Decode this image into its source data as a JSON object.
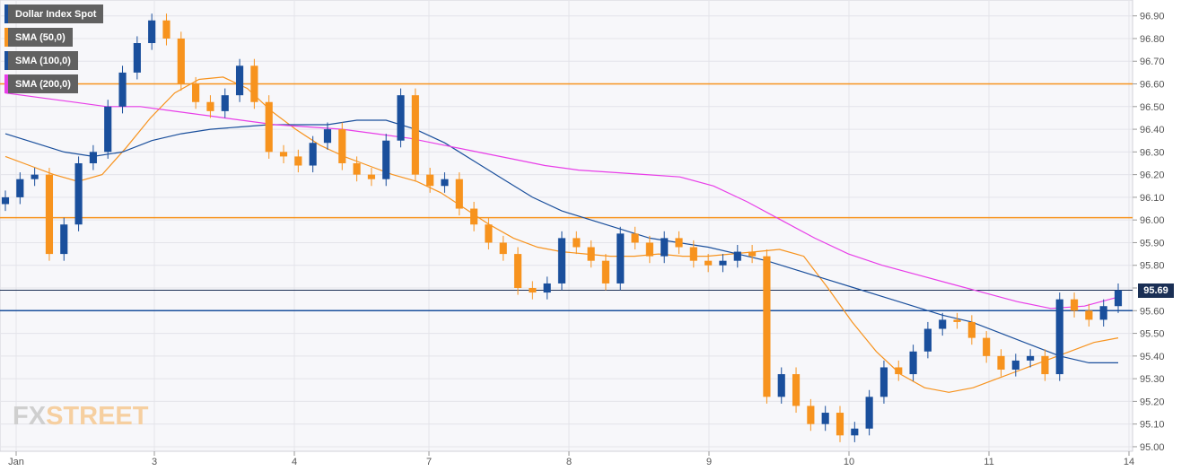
{
  "legend": [
    {
      "label": "Dollar Index Spot",
      "color": "#1a4f9c"
    },
    {
      "label": "SMA (50,0)",
      "color": "#f7931e"
    },
    {
      "label": "SMA (100,0)",
      "color": "#1a4f9c"
    },
    {
      "label": "SMA (200,0)",
      "color": "#e83ee8"
    }
  ],
  "logo": {
    "fx": "FX",
    "street": "STREET"
  },
  "current_price_label": "95.69",
  "chart_data": {
    "type": "line",
    "title": "",
    "xlabel": "",
    "ylabel": "",
    "ylim": [
      94.98,
      96.97
    ],
    "y_ticks": [
      "96.90",
      "96.80",
      "96.70",
      "96.60",
      "96.50",
      "96.40",
      "96.30",
      "96.20",
      "96.10",
      "96.00",
      "95.90",
      "95.80",
      "95.70",
      "95.60",
      "95.50",
      "95.40",
      "95.30",
      "95.20",
      "95.10",
      "95.00"
    ],
    "x_tick_labels": [
      "Jan",
      "3",
      "4",
      "7",
      "8",
      "9",
      "10",
      "11",
      "14"
    ],
    "x_tick_index": [
      0,
      12,
      24,
      36,
      48,
      60,
      72,
      84,
      96
    ],
    "grid": true,
    "legend_position": "top-left",
    "colors": {
      "up": "#1a4f9c",
      "down": "#f7931e",
      "sma50": "#f7931e",
      "sma100": "#1a4f9c",
      "sma200": "#e83ee8"
    },
    "horizontal_levels": [
      {
        "value": 96.6,
        "color": "#f7931e"
      },
      {
        "value": 96.01,
        "color": "#f7931e"
      },
      {
        "value": 95.6,
        "color": "#1a4f9c"
      },
      {
        "value": 95.69,
        "color": "#1a2f55"
      }
    ],
    "price_closes": [
      96.1,
      96.18,
      96.2,
      95.85,
      95.98,
      96.25,
      96.3,
      96.5,
      96.65,
      96.78,
      96.88,
      96.8,
      96.6,
      96.52,
      96.48,
      96.55,
      96.68,
      96.52,
      96.3,
      96.28,
      96.24,
      96.34,
      96.4,
      96.25,
      96.2,
      96.18,
      96.35,
      96.55,
      96.2,
      96.15,
      96.18,
      96.05,
      95.98,
      95.9,
      95.85,
      95.7,
      95.68,
      95.72,
      95.92,
      95.88,
      95.82,
      95.72,
      95.94,
      95.9,
      95.84,
      95.92,
      95.88,
      95.82,
      95.8,
      95.82,
      95.86,
      95.84,
      95.22,
      95.32,
      95.18,
      95.1,
      95.15,
      95.05,
      95.08,
      95.22,
      95.35,
      95.32,
      95.42,
      95.52,
      95.56,
      95.55,
      95.48,
      95.4,
      95.34,
      95.38,
      95.4,
      95.32,
      95.65,
      95.6,
      95.56,
      95.62,
      95.69
    ],
    "series": [
      {
        "name": "Dollar Index Spot",
        "values": [
          96.1,
          96.18,
          96.2,
          95.85,
          95.98,
          96.25,
          96.3,
          96.5,
          96.65,
          96.78,
          96.88,
          96.8,
          96.6,
          96.52,
          96.48,
          96.55,
          96.68,
          96.52,
          96.3,
          96.28,
          96.24,
          96.34,
          96.4,
          96.25,
          96.2,
          96.18,
          96.35,
          96.55,
          96.2,
          96.15,
          96.18,
          96.05,
          95.98,
          95.9,
          95.85,
          95.7,
          95.68,
          95.72,
          95.92,
          95.88,
          95.82,
          95.72,
          95.94,
          95.9,
          95.84,
          95.92,
          95.88,
          95.82,
          95.8,
          95.82,
          95.86,
          95.84,
          95.22,
          95.32,
          95.18,
          95.1,
          95.15,
          95.05,
          95.08,
          95.22,
          95.35,
          95.32,
          95.42,
          95.52,
          95.56,
          95.55,
          95.48,
          95.4,
          95.34,
          95.38,
          95.4,
          95.32,
          95.65,
          95.6,
          95.56,
          95.62,
          95.69
        ]
      },
      {
        "name": "SMA (50,0)",
        "values": [
          96.28,
          96.24,
          96.2,
          96.17,
          96.2,
          96.32,
          96.45,
          96.56,
          96.62,
          96.63,
          96.58,
          96.48,
          96.4,
          96.33,
          96.28,
          96.24,
          96.2,
          96.17,
          96.12,
          96.05,
          95.98,
          95.92,
          95.88,
          95.86,
          95.85,
          95.84,
          95.84,
          95.85,
          95.84,
          95.84,
          95.85,
          95.86,
          95.87,
          95.84,
          95.7,
          95.55,
          95.42,
          95.32,
          95.26,
          95.24,
          95.26,
          95.3,
          95.34,
          95.38,
          95.42,
          95.46,
          95.48
        ]
      },
      {
        "name": "SMA (100,0)",
        "values": [
          96.38,
          96.34,
          96.3,
          96.28,
          96.3,
          96.35,
          96.38,
          96.4,
          96.41,
          96.42,
          96.42,
          96.42,
          96.44,
          96.44,
          96.4,
          96.34,
          96.26,
          96.18,
          96.1,
          96.04,
          96.0,
          95.96,
          95.92,
          95.9,
          95.88,
          95.85,
          95.82,
          95.78,
          95.74,
          95.7,
          95.66,
          95.62,
          95.58,
          95.55,
          95.5,
          95.45,
          95.4,
          95.37,
          95.37
        ]
      },
      {
        "name": "SMA (200,0)",
        "values": [
          96.56,
          96.54,
          96.52,
          96.5,
          96.5,
          96.48,
          96.46,
          96.44,
          96.42,
          96.41,
          96.4,
          96.38,
          96.36,
          96.33,
          96.3,
          96.27,
          96.24,
          96.22,
          96.21,
          96.2,
          96.19,
          96.15,
          96.08,
          96.0,
          95.92,
          95.85,
          95.8,
          95.76,
          95.72,
          95.68,
          95.64,
          95.61,
          95.62,
          95.66
        ]
      }
    ]
  }
}
